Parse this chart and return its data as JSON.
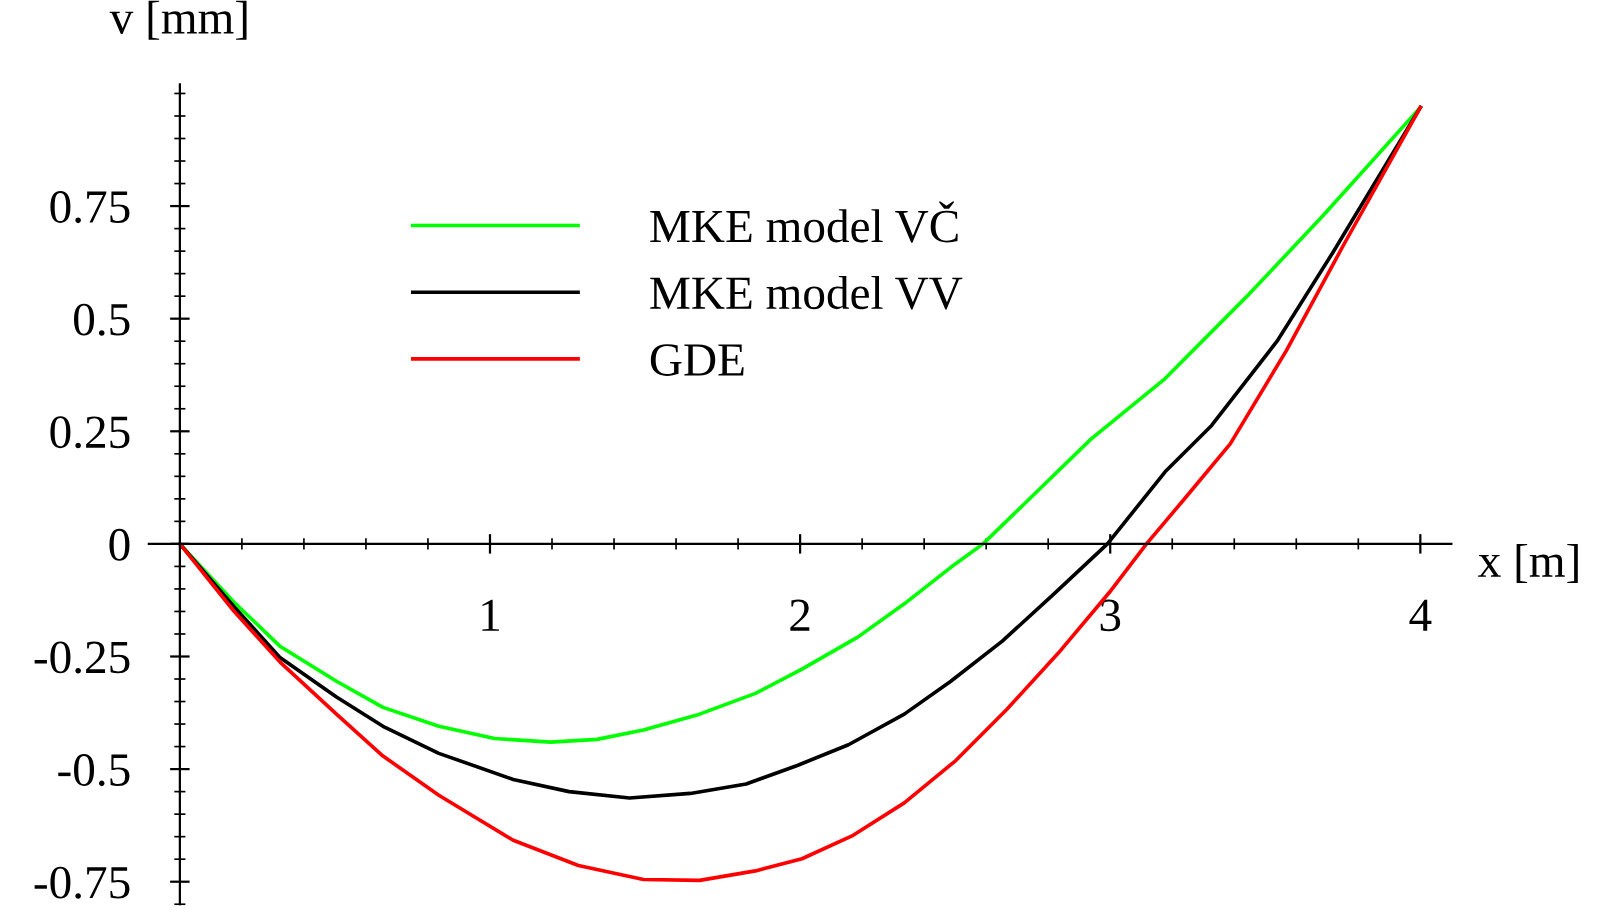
{
  "chart_data": {
    "type": "line",
    "xlabel": "x [m]",
    "ylabel": "v [mm]",
    "xlim": [
      -0.1,
      4.1
    ],
    "ylim": [
      -0.8,
      1.02
    ],
    "xticks": [
      1,
      2,
      3,
      4
    ],
    "yticks": [
      -0.75,
      -0.5,
      -0.25,
      0,
      0.25,
      0.5,
      0.75
    ],
    "grid": false,
    "legend": "top left",
    "marker": "none",
    "line_style": "solid",
    "series": [
      {
        "name": "MKE model VČ",
        "color": "#00ff00",
        "x": [
          0,
          0.174,
          0.324,
          0.505,
          0.655,
          0.835,
          1.015,
          1.195,
          1.345,
          1.495,
          1.676,
          1.856,
          2.006,
          2.186,
          2.336,
          2.486,
          2.59,
          2.937,
          3.177,
          3.447,
          3.688,
          4.0
        ],
        "values": [
          0,
          -0.129,
          -0.228,
          -0.305,
          -0.363,
          -0.405,
          -0.432,
          -0.44,
          -0.434,
          -0.413,
          -0.378,
          -0.332,
          -0.278,
          -0.207,
          -0.133,
          -0.052,
          0,
          0.232,
          0.367,
          0.554,
          0.73,
          0.969
        ]
      },
      {
        "name": "MKE model VV",
        "color": "#000000",
        "x": [
          0,
          0.174,
          0.324,
          0.505,
          0.655,
          0.835,
          1.075,
          1.255,
          1.45,
          1.646,
          1.826,
          1.991,
          2.156,
          2.336,
          2.486,
          2.652,
          2.817,
          2.991,
          3.177,
          3.327,
          3.538,
          3.718,
          4.0
        ],
        "values": [
          0,
          -0.139,
          -0.253,
          -0.34,
          -0.405,
          -0.465,
          -0.523,
          -0.55,
          -0.564,
          -0.554,
          -0.533,
          -0.492,
          -0.446,
          -0.378,
          -0.305,
          -0.216,
          -0.112,
          0,
          0.16,
          0.263,
          0.45,
          0.647,
          0.969
        ]
      },
      {
        "name": "GDE",
        "color": "#ff0000",
        "x": [
          0,
          0.174,
          0.324,
          0.505,
          0.655,
          0.835,
          1.075,
          1.285,
          1.495,
          1.676,
          1.856,
          2.006,
          2.171,
          2.336,
          2.502,
          2.667,
          2.832,
          2.997,
          3.117,
          3.237,
          3.387,
          3.568,
          3.748,
          4.0
        ],
        "values": [
          0,
          -0.149,
          -0.263,
          -0.378,
          -0.471,
          -0.558,
          -0.658,
          -0.714,
          -0.745,
          -0.747,
          -0.726,
          -0.699,
          -0.647,
          -0.575,
          -0.481,
          -0.367,
          -0.243,
          -0.108,
          0,
          0.098,
          0.222,
          0.429,
          0.658,
          0.969
        ]
      }
    ]
  }
}
